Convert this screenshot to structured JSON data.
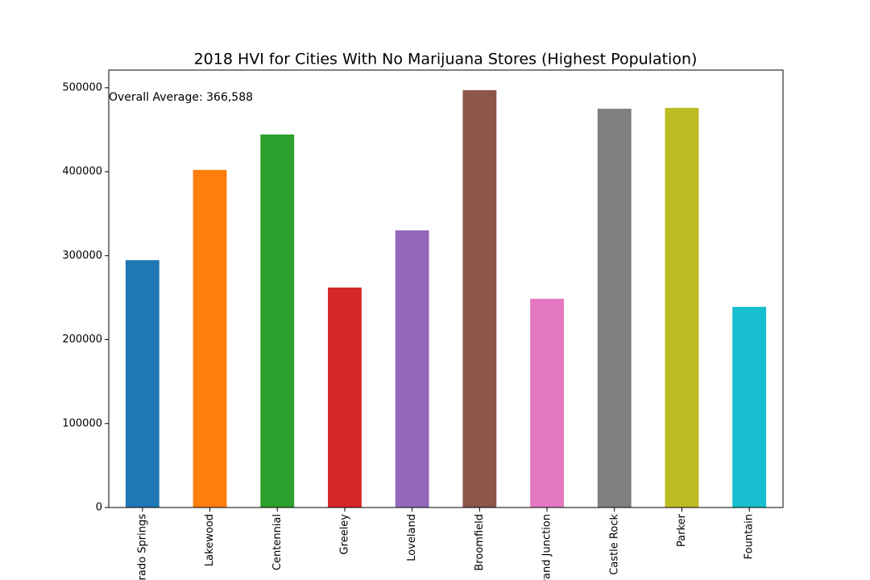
{
  "chart_data": {
    "type": "bar",
    "title": "2018 HVI for Cities With No Marijuana Stores (Highest Population)",
    "annotation": "Overall Average: 366,588",
    "categories": [
      "Colorado Springs",
      "Lakewood",
      "Centennial",
      "Greeley",
      "Loveland",
      "Broomfield",
      "Grand Junction",
      "Castle Rock",
      "Parker",
      "Fountain"
    ],
    "values": [
      294600,
      402100,
      444300,
      262000,
      330100,
      497100,
      248600,
      475000,
      476000,
      239000
    ],
    "colors": [
      "#1f77b4",
      "#ff7f0e",
      "#2ca02c",
      "#d62728",
      "#9467bd",
      "#8c564b",
      "#e377c2",
      "#7f7f7f",
      "#bcbd22",
      "#17becf"
    ],
    "ylim": [
      0,
      521000
    ],
    "yticks": [
      0,
      100000,
      200000,
      300000,
      400000,
      500000
    ],
    "grid": false
  }
}
